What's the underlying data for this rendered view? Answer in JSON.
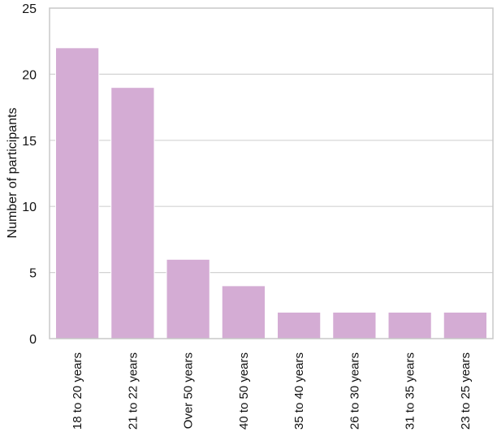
{
  "chart_data": {
    "type": "bar",
    "title": "",
    "xlabel": "",
    "ylabel": "Number of participants",
    "categories": [
      "18 to 20 years",
      "21 to 22 years",
      "Over 50 years",
      "40 to 50 years",
      "35 to 40 years",
      "26 to 30 years",
      "31 to 35 years",
      "23 to 25 years"
    ],
    "values": [
      22,
      19,
      6,
      4,
      2,
      2,
      2,
      2
    ],
    "ylim": [
      0,
      25
    ],
    "yticks": [
      0,
      5,
      10,
      15,
      20,
      25
    ],
    "grid": true,
    "legend": "none",
    "colors": {
      "bar": "#d4acd4",
      "bar_stroke": "#ffffff",
      "grid": "#d3d3d3",
      "frame": "#c8c8c8",
      "text": "#111111"
    }
  }
}
